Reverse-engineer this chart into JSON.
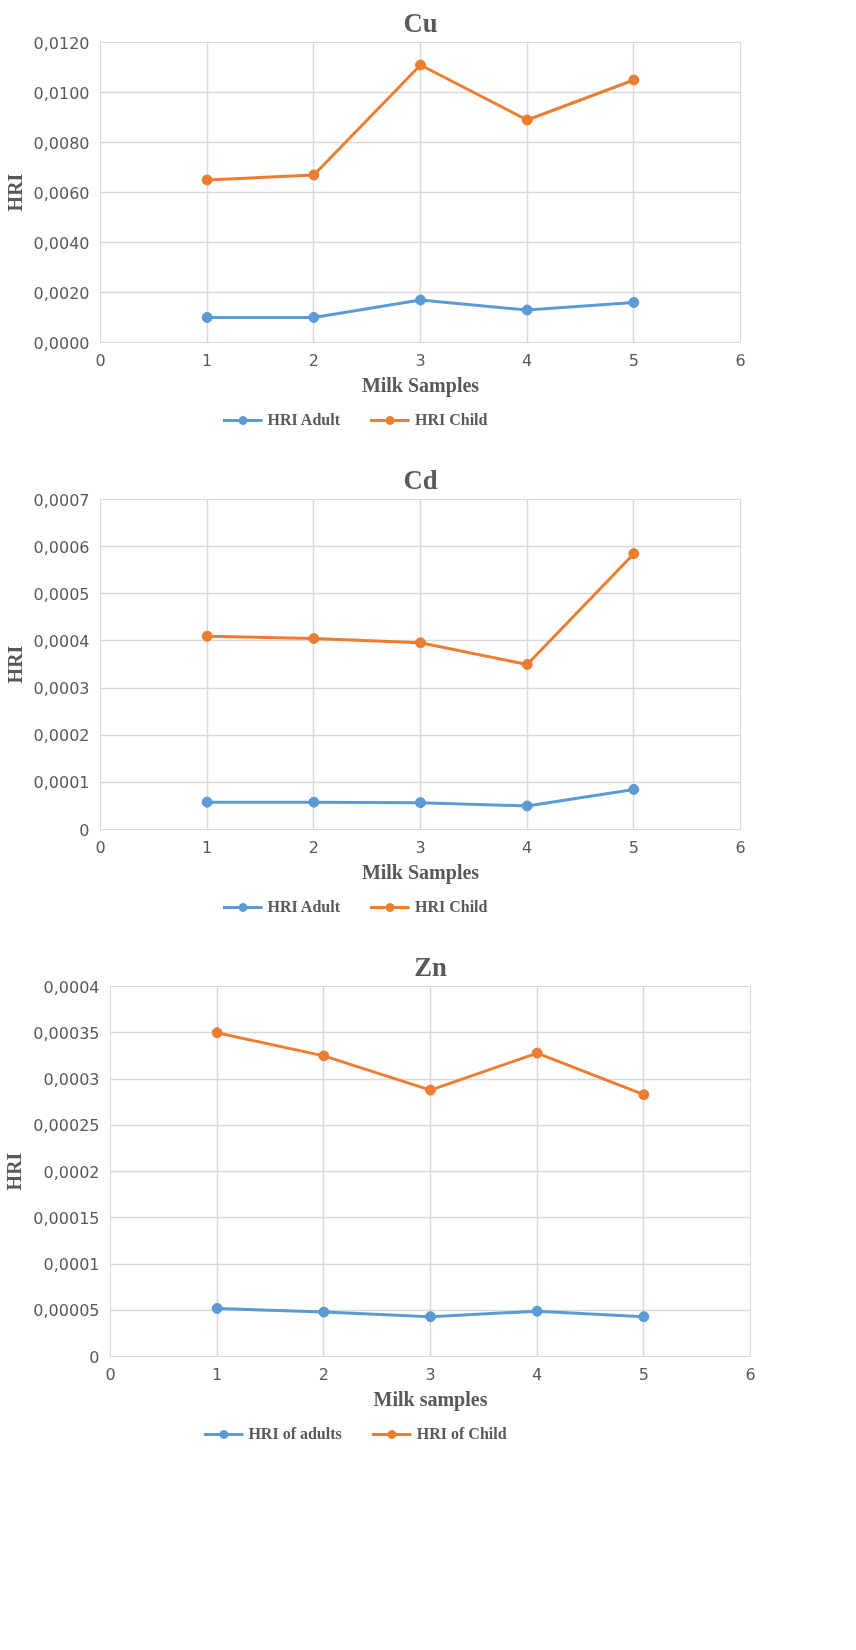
{
  "chart_data": [
    {
      "type": "line",
      "title": "Cu",
      "xlabel": "Milk Samples",
      "ylabel": "HRI",
      "x": [
        1,
        2,
        3,
        4,
        5
      ],
      "xlim": [
        0,
        6
      ],
      "xticks": [
        0,
        1,
        2,
        3,
        4,
        5,
        6
      ],
      "ylim": [
        0,
        0.012
      ],
      "yticks": [
        {
          "value": 0,
          "label": "0,0000"
        },
        {
          "value": 0.002,
          "label": "0,0020"
        },
        {
          "value": 0.004,
          "label": "0,0040"
        },
        {
          "value": 0.006,
          "label": "0,0060"
        },
        {
          "value": 0.008,
          "label": "0,0080"
        },
        {
          "value": 0.01,
          "label": "0,0100"
        },
        {
          "value": 0.012,
          "label": "0,0120"
        }
      ],
      "grid": true,
      "legend": "bottom",
      "marker": "circle",
      "line_style": "solid",
      "series": [
        {
          "name": "HRI Adult",
          "color": "#5b9bd5",
          "values": [
            0.001,
            0.001,
            0.0017,
            0.0013,
            0.0016
          ]
        },
        {
          "name": "HRI Child",
          "color": "#ed7d31",
          "values": [
            0.0065,
            0.0067,
            0.0111,
            0.0089,
            0.0105
          ]
        }
      ]
    },
    {
      "type": "line",
      "title": "Cd",
      "xlabel": "Milk Samples",
      "ylabel": "HRI",
      "x": [
        1,
        2,
        3,
        4,
        5
      ],
      "xlim": [
        0,
        6
      ],
      "xticks": [
        0,
        1,
        2,
        3,
        4,
        5,
        6
      ],
      "ylim": [
        0,
        0.0007
      ],
      "yticks": [
        0,
        {
          "value": 0.0001,
          "label": "0,0001"
        },
        {
          "value": 0.0002,
          "label": "0,0002"
        },
        {
          "value": 0.0003,
          "label": "0,0003"
        },
        {
          "value": 0.0004,
          "label": "0,0004"
        },
        {
          "value": 0.0005,
          "label": "0,0005"
        },
        {
          "value": 0.0006,
          "label": "0,0006"
        },
        {
          "value": 0.0007,
          "label": "0,0007"
        }
      ],
      "grid": true,
      "legend": "bottom",
      "marker": "circle",
      "line_style": "solid",
      "series": [
        {
          "name": "HRI Adult",
          "color": "#5b9bd5",
          "values": [
            5.8e-05,
            5.8e-05,
            5.7e-05,
            5e-05,
            8.5e-05
          ]
        },
        {
          "name": "HRI Child",
          "color": "#ed7d31",
          "values": [
            0.00041,
            0.000405,
            0.000396,
            0.00035,
            0.000585
          ]
        }
      ]
    },
    {
      "type": "line",
      "title": "Zn",
      "xlabel": "Milk samples",
      "ylabel": "HRI",
      "x": [
        1,
        2,
        3,
        4,
        5
      ],
      "xlim": [
        0,
        6
      ],
      "xticks": [
        0,
        1,
        2,
        3,
        4,
        5,
        6
      ],
      "ylim": [
        0,
        0.0004
      ],
      "yticks": [
        0,
        {
          "value": 5e-05,
          "label": "0,00005"
        },
        {
          "value": 0.0001,
          "label": "0,0001"
        },
        {
          "value": 0.00015,
          "label": "0,00015"
        },
        {
          "value": 0.0002,
          "label": "0,0002"
        },
        {
          "value": 0.00025,
          "label": "0,00025"
        },
        {
          "value": 0.0003,
          "label": "0,0003"
        },
        {
          "value": 0.00035,
          "label": "0,00035"
        },
        {
          "value": 0.0004,
          "label": "0,0004"
        }
      ],
      "grid": true,
      "legend": "bottom",
      "marker": "circle",
      "line_style": "solid",
      "series": [
        {
          "name": "HRI of adults",
          "color": "#5b9bd5",
          "values": [
            5.2e-05,
            4.8e-05,
            4.3e-05,
            4.9e-05,
            4.3e-05
          ]
        },
        {
          "name": "HRI of Child",
          "color": "#ed7d31",
          "values": [
            0.00035,
            0.000325,
            0.000288,
            0.000328,
            0.000283
          ]
        }
      ]
    }
  ]
}
